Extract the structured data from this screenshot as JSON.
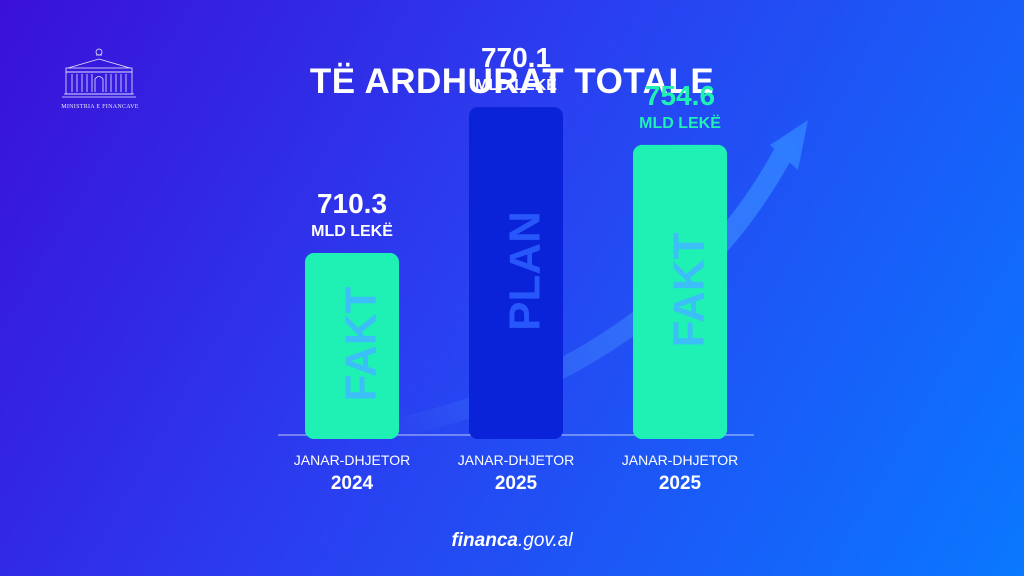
{
  "logo": {
    "text": "MINISTRIA E FINANCAVE"
  },
  "title": "TË ARDHURAT TOTALE",
  "footer": {
    "domain_bold": "financa",
    "domain_rest": ".gov.al"
  },
  "colors": {
    "fakt": "#1ff0b4",
    "plan": "#0a22d8",
    "accent_text": "#1ff0b4",
    "white": "#ffffff"
  },
  "chart_data": {
    "type": "bar",
    "title": "TË ARDHURAT TOTALE",
    "unit": "MLD LEKË",
    "categories": [
      "JANAR-DHJETOR 2024",
      "JANAR-DHJETOR 2025",
      "JANAR-DHJETOR 2025"
    ],
    "bars": [
      {
        "value": 710.3,
        "value_label": "710.3",
        "unit_label": "MLD LEKË",
        "bar_label": "FAKT",
        "period": "JANAR-DHJETOR",
        "year": "2024",
        "kind": "fakt",
        "highlight": false
      },
      {
        "value": 770.1,
        "value_label": "770.1",
        "unit_label": "MLD LEKË",
        "bar_label": "PLAN",
        "period": "JANAR-DHJETOR",
        "year": "2025",
        "kind": "plan",
        "highlight": false
      },
      {
        "value": 754.6,
        "value_label": "754.6",
        "unit_label": "MLD LEKË",
        "bar_label": "FAKT",
        "period": "JANAR-DHJETOR",
        "year": "2025",
        "kind": "fakt",
        "highlight": true
      }
    ],
    "trend_arrow": true,
    "legend": "none",
    "grid": false
  }
}
